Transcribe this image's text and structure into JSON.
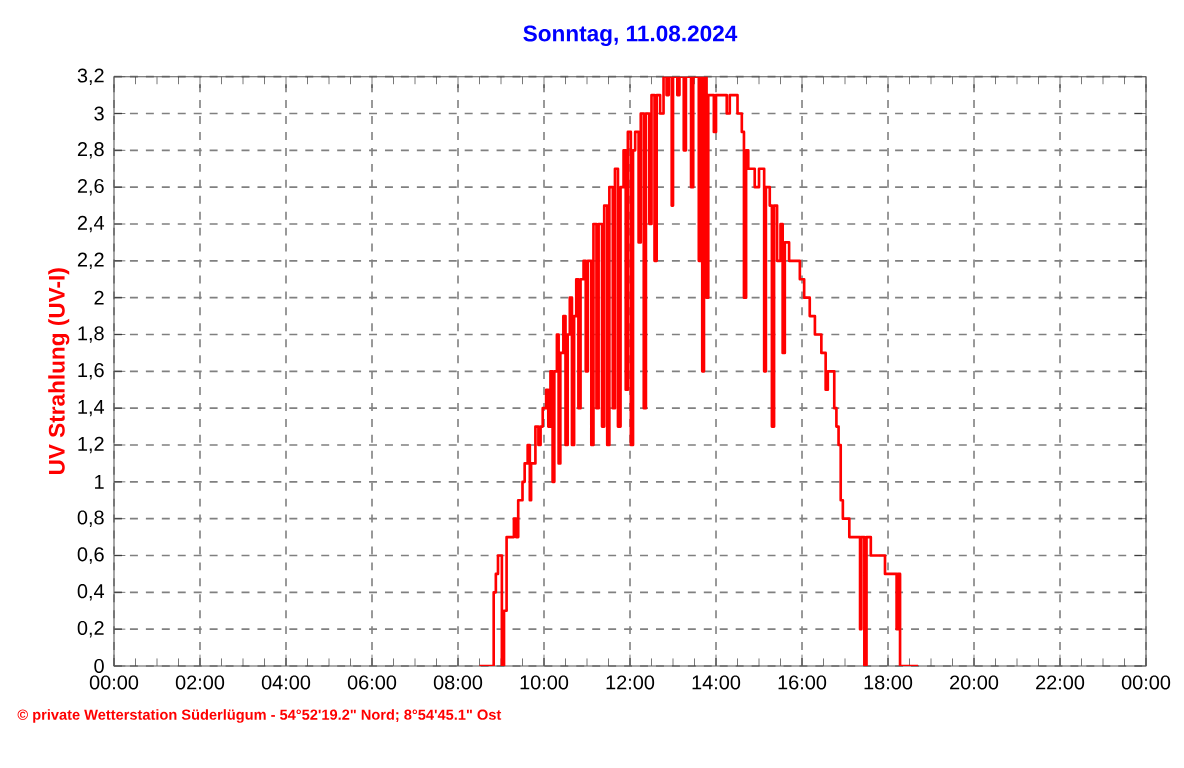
{
  "chart_data": {
    "type": "step",
    "title": "Sonntag, 11.08.2024",
    "ylabel": "UV Strahlung  (UV-I)",
    "annotations": [
      "© private Wetterstation Süderlügum - 54°52'19.2\" Nord; 8°54'45.1\" Ost"
    ],
    "xlim": [
      0,
      24
    ],
    "xticks": [
      {
        "value": 0,
        "label": "00:00"
      },
      {
        "value": 2,
        "label": "02:00"
      },
      {
        "value": 4,
        "label": "04:00"
      },
      {
        "value": 6,
        "label": "06:00"
      },
      {
        "value": 8,
        "label": "08:00"
      },
      {
        "value": 10,
        "label": "10:00"
      },
      {
        "value": 12,
        "label": "12:00"
      },
      {
        "value": 14,
        "label": "14:00"
      },
      {
        "value": 16,
        "label": "16:00"
      },
      {
        "value": 18,
        "label": "18:00"
      },
      {
        "value": 20,
        "label": "20:00"
      },
      {
        "value": 22,
        "label": "22:00"
      },
      {
        "value": 24,
        "label": "00:00"
      }
    ],
    "ylim": [
      0,
      3.2
    ],
    "yticks": [
      0,
      {
        "value": 0.2,
        "label": "0,2"
      },
      {
        "value": 0.4,
        "label": "0,4"
      },
      {
        "value": 0.6,
        "label": "0,6"
      },
      {
        "value": 0.8,
        "label": "0,8"
      },
      1,
      {
        "value": 1.2,
        "label": "1,2"
      },
      {
        "value": 1.4,
        "label": "1,4"
      },
      {
        "value": 1.6,
        "label": "1,6"
      },
      {
        "value": 1.8,
        "label": "1,8"
      },
      2,
      {
        "value": 2.2,
        "label": "2,2"
      },
      {
        "value": 2.4,
        "label": "2,4"
      },
      {
        "value": 2.6,
        "label": "2,6"
      },
      {
        "value": 2.8,
        "label": "2,8"
      },
      3,
      {
        "value": 3.2,
        "label": "3,2"
      }
    ],
    "grid": true,
    "marker": "none",
    "line_style": "solid",
    "series": [
      {
        "color": "#ff0000",
        "x": [
          8.5,
          8.83,
          8.88,
          8.93,
          9.02,
          9.07,
          9.13,
          9.3,
          9.35,
          9.4,
          9.5,
          9.55,
          9.62,
          9.67,
          9.7,
          9.8,
          9.87,
          9.92,
          9.97,
          10.05,
          10.1,
          10.15,
          10.2,
          10.24,
          10.3,
          10.34,
          10.38,
          10.45,
          10.5,
          10.55,
          10.6,
          10.65,
          10.7,
          10.75,
          10.8,
          10.85,
          10.92,
          10.97,
          11.02,
          11.1,
          11.15,
          11.22,
          11.27,
          11.35,
          11.4,
          11.47,
          11.52,
          11.6,
          11.65,
          11.72,
          11.78,
          11.85,
          11.9,
          11.95,
          12.02,
          12.07,
          12.12,
          12.2,
          12.25,
          12.32,
          12.37,
          12.45,
          12.5,
          12.57,
          12.62,
          12.7,
          12.78,
          12.85,
          12.9,
          12.97,
          13.0,
          13.1,
          13.15,
          13.25,
          13.3,
          13.42,
          13.47,
          13.6,
          13.64,
          13.68,
          13.72,
          13.78,
          13.82,
          13.95,
          14.0,
          14.25,
          14.32,
          14.5,
          14.6,
          14.65,
          14.7,
          14.75,
          14.9,
          15.0,
          15.12,
          15.16,
          15.25,
          15.3,
          15.35,
          15.42,
          15.5,
          15.55,
          15.6,
          15.7,
          15.95,
          16.05,
          16.18,
          16.3,
          16.45,
          16.55,
          16.6,
          16.75,
          16.8,
          16.85,
          16.9,
          16.95,
          17.1,
          17.35,
          17.38,
          17.45,
          17.5,
          17.6,
          17.93,
          18.2,
          18.23,
          18.28,
          18.7
        ],
        "values": [
          0,
          0.4,
          0.5,
          0.6,
          0,
          0.3,
          0.7,
          0.8,
          0.7,
          0.9,
          1.0,
          1.1,
          1.2,
          0.9,
          1.1,
          1.3,
          1.2,
          1.3,
          1.4,
          1.5,
          1.3,
          1.6,
          1.0,
          1.6,
          1.8,
          1.1,
          1.7,
          1.9,
          1.2,
          1.8,
          2.0,
          1.2,
          1.9,
          2.1,
          1.4,
          2.1,
          2.2,
          1.6,
          2.2,
          1.2,
          2.4,
          1.4,
          2.4,
          1.3,
          2.5,
          1.2,
          2.6,
          1.4,
          2.7,
          1.3,
          2.6,
          2.8,
          1.5,
          2.9,
          1.2,
          2.8,
          2.9,
          2.3,
          3.0,
          1.4,
          3.0,
          2.4,
          3.1,
          2.2,
          3.1,
          3.0,
          3.2,
          3.1,
          3.2,
          2.5,
          3.2,
          3.1,
          3.2,
          2.8,
          3.2,
          2.6,
          3.2,
          2.2,
          3.2,
          1.6,
          3.2,
          2.0,
          3.1,
          2.9,
          3.1,
          3.0,
          3.1,
          3.0,
          2.9,
          2.0,
          2.8,
          2.7,
          2.6,
          2.7,
          1.6,
          2.6,
          2.5,
          1.3,
          2.5,
          2.2,
          2.4,
          1.7,
          2.3,
          2.2,
          2.1,
          2.0,
          1.9,
          1.8,
          1.7,
          1.5,
          1.6,
          1.4,
          1.3,
          1.2,
          0.9,
          0.8,
          0.7,
          0.2,
          0.7,
          0,
          0.7,
          0.6,
          0.5,
          0.2,
          0.5,
          0,
          0
        ]
      }
    ]
  }
}
